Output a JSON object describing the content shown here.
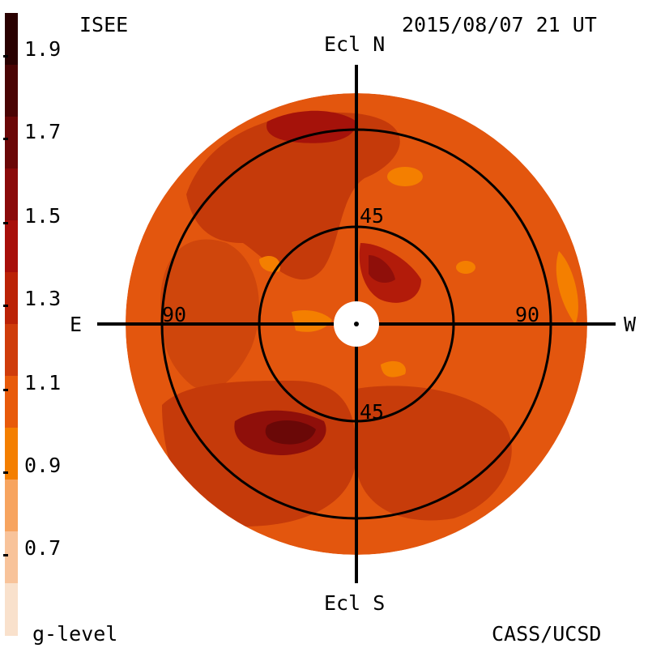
{
  "header": {
    "source": "ISEE",
    "timestamp": "2015/08/07 21 UT",
    "credit": "CASS/UCSD"
  },
  "axes": {
    "north": "Ecl N",
    "south": "Ecl S",
    "east": "E",
    "west": "W",
    "ring_inner_top": "45",
    "ring_inner_bottom": "45",
    "ring_outer_left": "90",
    "ring_outer_right": "90"
  },
  "colorbar": {
    "title": "g-level",
    "ticks": [
      "1.9",
      "1.7",
      "1.5",
      "1.3",
      "1.1",
      "0.9",
      "0.7"
    ],
    "colors": [
      "#f9e1cc",
      "#f8c39a",
      "#f7a45f",
      "#f47f00",
      "#e85a0a",
      "#cf3c0a",
      "#bb2206",
      "#a80f0a",
      "#8a0a0a",
      "#6b0707",
      "#4a0404",
      "#2a0101"
    ]
  },
  "map": {
    "background_color": "#e3560e"
  }
}
